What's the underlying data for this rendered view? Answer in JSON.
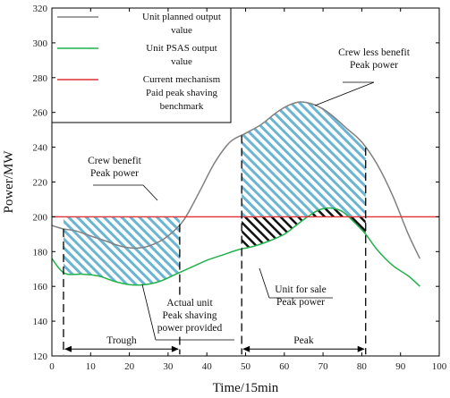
{
  "chart_data": {
    "type": "line",
    "xlabel": "Time/15min",
    "ylabel": "Power/MW",
    "xlim": [
      0,
      100
    ],
    "ylim": [
      120,
      320
    ],
    "xticks": [
      0,
      10,
      20,
      30,
      40,
      50,
      60,
      70,
      80,
      90,
      100
    ],
    "yticks": [
      120,
      140,
      160,
      180,
      200,
      220,
      240,
      260,
      280,
      300,
      320
    ],
    "grid": false,
    "legend_position": "top-left",
    "series": [
      {
        "name": "Unit planned output value",
        "color": "#808080",
        "x": [
          0,
          3,
          6,
          10,
          14,
          18,
          22,
          26,
          30,
          34,
          38,
          42,
          46,
          50,
          54,
          58,
          61,
          64,
          67,
          70,
          73,
          76,
          80,
          84,
          88,
          92,
          95
        ],
        "y": [
          195,
          193,
          192,
          189,
          186,
          183,
          182,
          184,
          189,
          198,
          214,
          231,
          243,
          248,
          253,
          260,
          264,
          266,
          265,
          262,
          257,
          251,
          243,
          230,
          212,
          190,
          176
        ]
      },
      {
        "name": "Unit PSAS output value",
        "color": "#22b14c",
        "x": [
          0,
          2,
          4,
          8,
          12,
          16,
          20,
          24,
          28,
          32,
          36,
          40,
          44,
          48,
          52,
          56,
          60,
          63,
          66,
          69,
          72,
          75,
          78,
          81,
          84,
          88,
          92,
          95
        ],
        "y": [
          176,
          170,
          167,
          167,
          166,
          163,
          161,
          161,
          163,
          167,
          171,
          175,
          178,
          181,
          183,
          186,
          190,
          195,
          200,
          204,
          205,
          203,
          197,
          190,
          181,
          172,
          166,
          160
        ]
      },
      {
        "name": "Current mechanism Paid peak shaving benchmark",
        "color": "#e03030",
        "x": [
          0,
          100
        ],
        "y": [
          200,
          200
        ]
      }
    ],
    "periods": [
      {
        "label": "Trough",
        "x_start": 3,
        "x_end": 33
      },
      {
        "label": "Peak",
        "x_start": 49,
        "x_end": 81
      }
    ],
    "legend": {
      "entries": [
        {
          "lines": [
            "Unit planned output",
            "value"
          ],
          "color": "#808080"
        },
        {
          "lines": [
            "Unit PSAS output",
            "value"
          ],
          "color": "#22b14c"
        },
        {
          "lines": [
            "Current mechanism",
            "Paid peak shaving",
            "benchmark"
          ],
          "color": "#e03030"
        }
      ]
    },
    "annotations": [
      {
        "lines": [
          "Crew less benefit",
          "Peak power"
        ]
      },
      {
        "lines": [
          "Crew benefit",
          "Peak power"
        ]
      },
      {
        "lines": [
          "Actual unit",
          "Peak shaving",
          "power provided"
        ]
      },
      {
        "lines": [
          "Unit for sale",
          "Peak power"
        ]
      }
    ],
    "hatch_colors": {
      "blue": "#6ab4d4",
      "black": "#111111"
    }
  }
}
